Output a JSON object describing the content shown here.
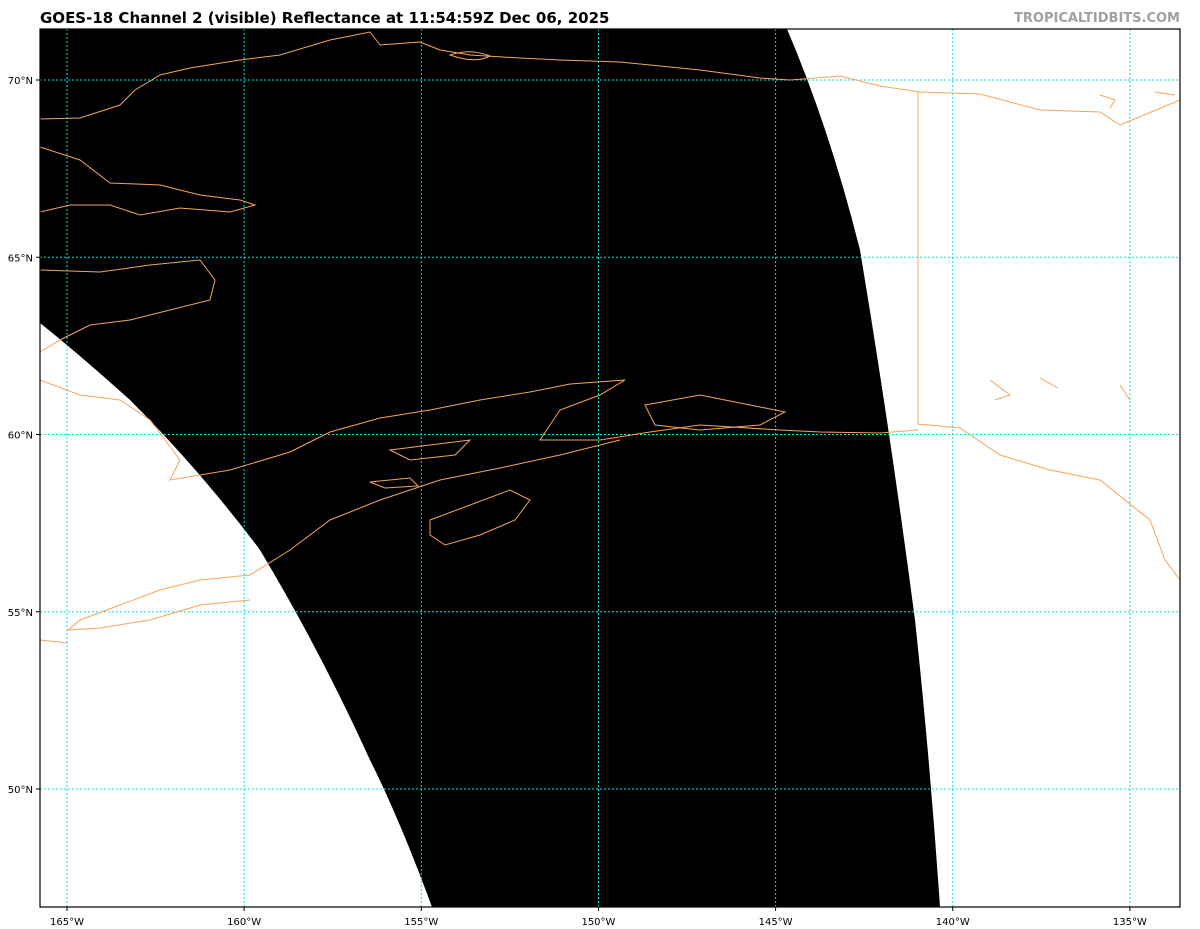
{
  "title": "GOES-18 Channel 2 (visible) Reflectance at 11:54:59Z Dec 06, 2025",
  "credit": "TROPICALTIDBITS.COM",
  "map": {
    "longitudes": [
      -165,
      -160,
      -155,
      -150,
      -145,
      -140,
      -135
    ],
    "latitudes": [
      70,
      65,
      60,
      55,
      50
    ],
    "lon_labels": [
      "165°W",
      "160°W",
      "155°W",
      "150°W",
      "145°W",
      "140°W",
      "135°W"
    ],
    "lat_labels": [
      "70°N",
      "65°N",
      "60°N",
      "55°N",
      "50°N"
    ],
    "colors": {
      "gridlines": "#00e5e5",
      "coastline": "#f4a55a",
      "night_area": "#000000",
      "no_data": "#ffffff"
    }
  }
}
